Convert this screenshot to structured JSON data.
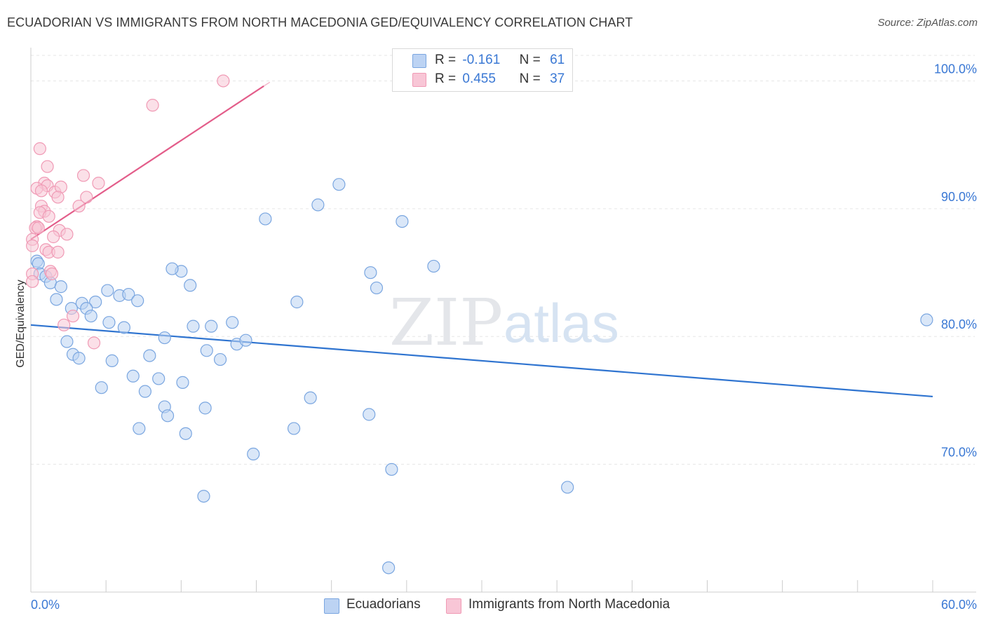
{
  "header": {
    "title": "ECUADORIAN VS IMMIGRANTS FROM NORTH MACEDONIA GED/EQUIVALENCY CORRELATION CHART",
    "source": "Source: ZipAtlas.com"
  },
  "watermark": {
    "zip": "ZIP",
    "atlas": "atlas"
  },
  "legend": {
    "r_label": "R =",
    "n_label": "N =",
    "series": [
      {
        "r": "-0.161",
        "n": "61"
      },
      {
        "r": "0.455",
        "n": "37"
      }
    ]
  },
  "chart_data": {
    "type": "scatter",
    "title": "ECUADORIAN VS IMMIGRANTS FROM NORTH MACEDONIA GED/EQUIVALENCY CORRELATION CHART",
    "xlabel": "",
    "ylabel": "GED/Equivalency",
    "xlim": [
      0,
      60
    ],
    "ylim": [
      60,
      102
    ],
    "x_tick_labels": [
      "0.0%",
      "60.0%"
    ],
    "y_ticks": [
      70,
      80,
      90,
      100
    ],
    "y_tick_labels": [
      "70.0%",
      "80.0%",
      "90.0%",
      "100.0%"
    ],
    "grid": true,
    "legend_position": "top-center",
    "series": [
      {
        "name": "Ecuadorians",
        "color": "#7aa6e0",
        "fill": "#bcd3f3",
        "line_color": "#2f74d0",
        "trend": [
          [
            0,
            80.9
          ],
          [
            60,
            75.3
          ]
        ],
        "points": [
          [
            0.4,
            85.9
          ],
          [
            0.5,
            85.7
          ],
          [
            0.6,
            84.9
          ],
          [
            1.0,
            84.7
          ],
          [
            1.3,
            84.2
          ],
          [
            2.0,
            83.9
          ],
          [
            1.7,
            82.9
          ],
          [
            3.4,
            82.6
          ],
          [
            4.3,
            82.7
          ],
          [
            2.7,
            82.2
          ],
          [
            3.7,
            82.2
          ],
          [
            4.0,
            81.6
          ],
          [
            5.1,
            83.6
          ],
          [
            5.9,
            83.2
          ],
          [
            6.5,
            83.3
          ],
          [
            7.1,
            82.8
          ],
          [
            5.2,
            81.1
          ],
          [
            6.2,
            80.7
          ],
          [
            2.4,
            79.6
          ],
          [
            2.8,
            78.6
          ],
          [
            3.2,
            78.3
          ],
          [
            5.4,
            78.1
          ],
          [
            7.9,
            78.5
          ],
          [
            6.8,
            76.9
          ],
          [
            4.7,
            76.0
          ],
          [
            7.6,
            75.7
          ],
          [
            8.5,
            76.7
          ],
          [
            8.9,
            79.9
          ],
          [
            10.0,
            85.1
          ],
          [
            9.4,
            85.3
          ],
          [
            10.6,
            84.0
          ],
          [
            10.8,
            80.8
          ],
          [
            12.0,
            80.8
          ],
          [
            11.7,
            78.9
          ],
          [
            12.6,
            78.2
          ],
          [
            13.4,
            81.1
          ],
          [
            13.7,
            79.4
          ],
          [
            14.3,
            79.7
          ],
          [
            10.1,
            76.4
          ],
          [
            8.9,
            74.5
          ],
          [
            9.1,
            73.8
          ],
          [
            11.6,
            74.4
          ],
          [
            7.2,
            72.8
          ],
          [
            10.3,
            72.4
          ],
          [
            11.5,
            67.5
          ],
          [
            14.8,
            70.8
          ],
          [
            15.6,
            89.2
          ],
          [
            17.7,
            82.7
          ],
          [
            18.6,
            75.2
          ],
          [
            17.5,
            72.8
          ],
          [
            19.1,
            90.3
          ],
          [
            20.5,
            91.9
          ],
          [
            22.6,
            85.0
          ],
          [
            23.0,
            83.8
          ],
          [
            22.5,
            73.9
          ],
          [
            24.0,
            69.6
          ],
          [
            24.7,
            89.0
          ],
          [
            26.8,
            85.5
          ],
          [
            35.7,
            68.2
          ],
          [
            23.8,
            61.9
          ],
          [
            59.6,
            81.3
          ]
        ]
      },
      {
        "name": "Immigrants from North Macedonia",
        "color": "#f09ab5",
        "fill": "#f8c6d6",
        "line_color": "#e35d8a",
        "trend": [
          [
            0,
            87.6
          ],
          [
            15.5,
            99.6
          ]
        ],
        "points": [
          [
            12.8,
            100.0
          ],
          [
            8.1,
            98.1
          ],
          [
            0.6,
            94.7
          ],
          [
            1.1,
            93.3
          ],
          [
            0.9,
            92.0
          ],
          [
            1.1,
            91.8
          ],
          [
            0.4,
            91.6
          ],
          [
            0.7,
            91.4
          ],
          [
            1.6,
            91.3
          ],
          [
            2.0,
            91.7
          ],
          [
            3.5,
            92.6
          ],
          [
            4.5,
            92.0
          ],
          [
            1.8,
            90.9
          ],
          [
            3.7,
            90.9
          ],
          [
            3.2,
            90.2
          ],
          [
            0.7,
            90.2
          ],
          [
            0.9,
            89.8
          ],
          [
            0.6,
            89.7
          ],
          [
            1.2,
            89.4
          ],
          [
            0.4,
            88.6
          ],
          [
            0.3,
            88.5
          ],
          [
            0.5,
            88.5
          ],
          [
            1.9,
            88.3
          ],
          [
            1.5,
            87.8
          ],
          [
            2.4,
            88.0
          ],
          [
            0.1,
            87.6
          ],
          [
            0.1,
            87.1
          ],
          [
            1.0,
            86.8
          ],
          [
            1.2,
            86.6
          ],
          [
            1.8,
            86.6
          ],
          [
            0.1,
            84.9
          ],
          [
            0.1,
            84.3
          ],
          [
            1.3,
            85.1
          ],
          [
            1.4,
            84.9
          ],
          [
            2.8,
            81.6
          ],
          [
            2.2,
            80.9
          ],
          [
            4.2,
            79.5
          ]
        ]
      }
    ]
  }
}
